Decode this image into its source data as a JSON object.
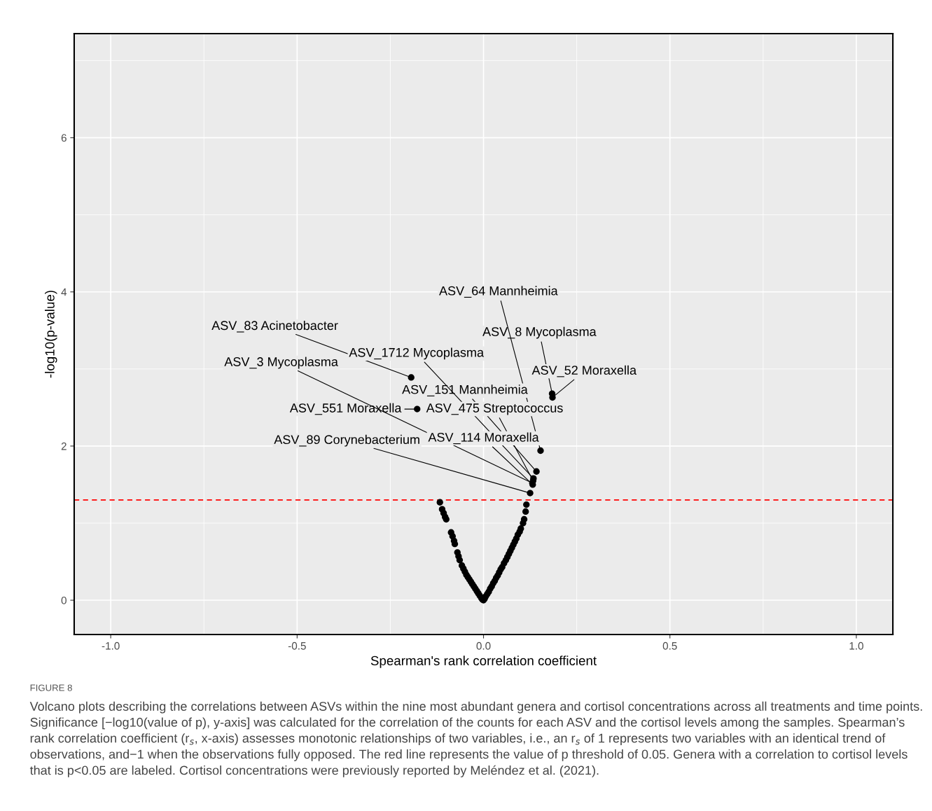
{
  "chart_data": {
    "type": "scatter",
    "xlabel": "Spearman's rank correlation coefficient",
    "ylabel": "-log10(p-value)",
    "xlim": [
      -1.098,
      1.098
    ],
    "ylim": [
      -0.445,
      7.35
    ],
    "xticks": [
      {
        "value": -1,
        "label": "-1.0"
      },
      {
        "value": -0.5,
        "label": "-0.5"
      },
      {
        "value": 0,
        "label": "0.0"
      },
      {
        "value": 0.5,
        "label": "0.5"
      },
      {
        "value": 1,
        "label": "1.0"
      }
    ],
    "yticks": [
      0,
      2,
      4,
      6
    ],
    "grid": true,
    "marker": "circle",
    "series": [
      {
        "color": "#000000",
        "x": [
          -0.194,
          -0.178,
          0.184,
          0.185,
          0.153,
          0.142,
          0.134,
          0.133,
          0.131,
          0.132,
          0.125,
          -0.117,
          -0.111,
          -0.107,
          -0.103,
          -0.1,
          -0.087,
          -0.083,
          -0.079,
          -0.077,
          -0.07,
          -0.067,
          -0.064,
          -0.058,
          -0.054,
          -0.05,
          -0.046,
          -0.042,
          -0.038,
          -0.034,
          -0.03,
          -0.026,
          -0.022,
          -0.018,
          -0.014,
          -0.01,
          -0.006,
          -0.003,
          0.0,
          0.003,
          0.006,
          0.01,
          0.014,
          0.018,
          0.022,
          0.026,
          0.03,
          0.034,
          0.038,
          0.042,
          0.046,
          0.05,
          0.055,
          0.06,
          0.064,
          0.068,
          0.072,
          0.076,
          0.08,
          0.084,
          0.088,
          0.092,
          0.097,
          0.1,
          0.106,
          0.109,
          0.113,
          0.115
        ],
        "values": [
          2.89,
          2.48,
          2.68,
          2.63,
          1.94,
          1.67,
          1.58,
          1.55,
          1.52,
          1.5,
          1.39,
          1.27,
          1.18,
          1.13,
          1.08,
          1.05,
          0.88,
          0.83,
          0.77,
          0.73,
          0.62,
          0.57,
          0.52,
          0.45,
          0.41,
          0.37,
          0.33,
          0.3,
          0.27,
          0.24,
          0.21,
          0.18,
          0.15,
          0.12,
          0.09,
          0.06,
          0.03,
          0.01,
          0.0,
          0.02,
          0.05,
          0.08,
          0.11,
          0.15,
          0.18,
          0.22,
          0.25,
          0.29,
          0.32,
          0.36,
          0.4,
          0.43,
          0.48,
          0.52,
          0.56,
          0.6,
          0.64,
          0.68,
          0.72,
          0.76,
          0.8,
          0.85,
          0.89,
          0.93,
          1.0,
          1.05,
          1.15,
          1.24
        ]
      }
    ],
    "ref_lines": [
      {
        "axis": "y",
        "value": 1.3,
        "color": "#ff0000",
        "line_style": "dashed"
      }
    ],
    "annotations": [
      {
        "text": "ASV_83 Acinetobacter",
        "x": -0.194,
        "y": 2.89
      },
      {
        "text": "ASV_551 Moraxella",
        "x": -0.178,
        "y": 2.48
      },
      {
        "text": "ASV_8 Mycoplasma",
        "x": 0.184,
        "y": 2.68
      },
      {
        "text": "ASV_52 Moraxella",
        "x": 0.185,
        "y": 2.63
      },
      {
        "text": "ASV_64 Mannheimia",
        "x": 0.153,
        "y": 1.94
      },
      {
        "text": "ASV_151 Mannheimia",
        "x": 0.142,
        "y": 1.67
      },
      {
        "text": "ASV_1712 Mycoplasma",
        "x": 0.134,
        "y": 1.58
      },
      {
        "text": "ASV_475 Streptococcus",
        "x": 0.133,
        "y": 1.55
      },
      {
        "text": "ASV_3 Mycoplasma",
        "x": 0.131,
        "y": 1.52
      },
      {
        "text": "ASV_114 Moraxella",
        "x": 0.132,
        "y": 1.5
      },
      {
        "text": "ASV_89 Corynebacterium",
        "x": 0.125,
        "y": 1.39
      },
      "FIGURE 8",
      "Volcano plots describing the correlations between ASVs within the nine most abundant genera and cortisol concentrations across all treatments and time points. Significance [−log10(value of p), y-axis] was calculated for the correlation of the counts for each ASV and the cortisol levels among the samples. Spearman’s rank correlation coefficient (r$_{s}$, x-axis) assesses monotonic relationships of two variables, i.e., an r$_{s}$ of 1 represents two variables with an identical trend of observations, and−1 when the observations fully opposed. The red line represents the value of p threshold of 0.05. Genera with a correlation to cortisol levels that is p<0.05 are labeled. Cortisol concentrations were previously reported by Meléndez et al. (2021)."
    ]
  }
}
